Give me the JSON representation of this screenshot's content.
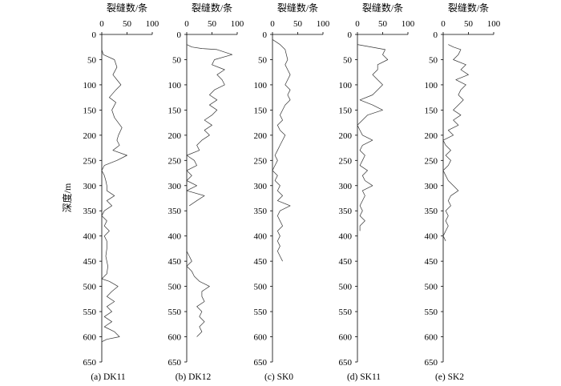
{
  "y_label": "深度/m",
  "chart_data": [
    {
      "type": "line",
      "caption": "(a) DK11",
      "xlabel": "裂缝数/条",
      "xlim": [
        0,
        100
      ],
      "x_ticks": [
        "0",
        "50",
        "100"
      ],
      "ylim": [
        0,
        650
      ],
      "y_inverted": true,
      "y_ticks": [
        "0",
        "50",
        "100",
        "150",
        "200",
        "250",
        "300",
        "350",
        "400",
        "450",
        "500",
        "550",
        "600",
        "650"
      ],
      "series": [
        {
          "points": [
            [
              0,
              30
            ],
            [
              3,
              40
            ],
            [
              25,
              50
            ],
            [
              30,
              65
            ],
            [
              22,
              80
            ],
            [
              30,
              90
            ],
            [
              38,
              100
            ],
            [
              28,
              110
            ],
            [
              15,
              125
            ],
            [
              28,
              135
            ],
            [
              20,
              150
            ],
            [
              25,
              165
            ],
            [
              40,
              185
            ],
            [
              33,
              200
            ],
            [
              30,
              210
            ],
            [
              35,
              220
            ],
            [
              22,
              230
            ],
            [
              50,
              240
            ],
            [
              30,
              250
            ],
            [
              5,
              260
            ],
            [
              0,
              270
            ],
            [
              5,
              280
            ],
            [
              8,
              290
            ],
            [
              10,
              300
            ],
            [
              10,
              310
            ],
            [
              25,
              320
            ],
            [
              10,
              330
            ],
            [
              20,
              340
            ],
            [
              5,
              350
            ],
            [
              0,
              360
            ],
            [
              10,
              370
            ],
            [
              5,
              380
            ],
            [
              15,
              390
            ],
            [
              5,
              400
            ],
            [
              10,
              410
            ],
            [
              10,
              425
            ],
            [
              8,
              440
            ],
            [
              12,
              460
            ],
            [
              10,
              475
            ],
            [
              0,
              485
            ],
            [
              15,
              490
            ],
            [
              32,
              500
            ],
            [
              20,
              510
            ],
            [
              10,
              520
            ],
            [
              25,
              530
            ],
            [
              10,
              540
            ],
            [
              20,
              550
            ],
            [
              5,
              560
            ],
            [
              20,
              570
            ],
            [
              5,
              580
            ],
            [
              25,
              590
            ],
            [
              35,
              600
            ],
            [
              10,
              605
            ],
            [
              0,
              610
            ]
          ]
        }
      ]
    },
    {
      "type": "line",
      "caption": "(b) DK12",
      "xlabel": "裂缝数/条",
      "xlim": [
        0,
        100
      ],
      "x_ticks": [
        "0",
        "50",
        "100"
      ],
      "ylim": [
        0,
        650
      ],
      "y_inverted": true,
      "y_ticks": [
        "0",
        "50",
        "100",
        "150",
        "200",
        "250",
        "300",
        "350",
        "400",
        "450",
        "500",
        "550",
        "600",
        "650"
      ],
      "series": [
        {
          "points": [
            [
              0,
              20
            ],
            [
              10,
              25
            ],
            [
              30,
              28
            ],
            [
              60,
              30
            ],
            [
              90,
              40
            ],
            [
              55,
              50
            ],
            [
              50,
              60
            ],
            [
              75,
              70
            ],
            [
              60,
              80
            ],
            [
              70,
              90
            ],
            [
              75,
              100
            ],
            [
              55,
              110
            ],
            [
              45,
              120
            ],
            [
              60,
              130
            ],
            [
              45,
              140
            ],
            [
              60,
              150
            ],
            [
              50,
              160
            ],
            [
              35,
              170
            ],
            [
              50,
              180
            ],
            [
              35,
              190
            ],
            [
              45,
              200
            ],
            [
              30,
              210
            ],
            [
              20,
              220
            ],
            [
              25,
              230
            ],
            [
              0,
              240
            ],
            [
              15,
              250
            ],
            [
              20,
              260
            ],
            [
              0,
              270
            ],
            [
              10,
              280
            ],
            [
              0,
              290
            ],
            [
              20,
              300
            ],
            [
              0,
              310
            ],
            [
              35,
              320
            ],
            [
              20,
              330
            ],
            [
              5,
              340
            ]
          ]
        },
        {
          "points": [
            [
              0,
              430
            ],
            [
              5,
              440
            ],
            [
              10,
              450
            ],
            [
              0,
              460
            ],
            [
              10,
              470
            ],
            [
              15,
              480
            ],
            [
              25,
              490
            ],
            [
              45,
              500
            ],
            [
              30,
              510
            ],
            [
              30,
              520
            ],
            [
              35,
              530
            ],
            [
              20,
              540
            ],
            [
              30,
              550
            ],
            [
              25,
              560
            ],
            [
              35,
              570
            ],
            [
              25,
              580
            ],
            [
              30,
              590
            ],
            [
              20,
              600
            ]
          ]
        }
      ]
    },
    {
      "type": "line",
      "caption": "(c) SK0",
      "xlabel": "裂缝数/条",
      "xlim": [
        0,
        100
      ],
      "x_ticks": [
        "0",
        "50",
        "100"
      ],
      "ylim": [
        0,
        650
      ],
      "y_inverted": true,
      "y_ticks": [
        "0",
        "50",
        "100",
        "150",
        "200",
        "250",
        "300",
        "350",
        "400",
        "450",
        "500",
        "550",
        "600",
        "650"
      ],
      "series": [
        {
          "points": [
            [
              0,
              10
            ],
            [
              15,
              20
            ],
            [
              25,
              30
            ],
            [
              30,
              50
            ],
            [
              25,
              60
            ],
            [
              30,
              70
            ],
            [
              35,
              80
            ],
            [
              30,
              90
            ],
            [
              25,
              100
            ],
            [
              35,
              110
            ],
            [
              30,
              120
            ],
            [
              35,
              130
            ],
            [
              25,
              140
            ],
            [
              20,
              150
            ],
            [
              15,
              160
            ],
            [
              20,
              170
            ],
            [
              10,
              180
            ],
            [
              15,
              190
            ],
            [
              25,
              200
            ],
            [
              20,
              210
            ],
            [
              15,
              220
            ],
            [
              10,
              230
            ],
            [
              5,
              240
            ],
            [
              10,
              250
            ],
            [
              5,
              260
            ],
            [
              0,
              270
            ],
            [
              10,
              280
            ],
            [
              5,
              290
            ],
            [
              15,
              300
            ],
            [
              10,
              310
            ],
            [
              20,
              320
            ],
            [
              10,
              330
            ],
            [
              35,
              340
            ],
            [
              15,
              350
            ],
            [
              10,
              360
            ],
            [
              15,
              370
            ],
            [
              20,
              380
            ],
            [
              10,
              390
            ],
            [
              15,
              400
            ],
            [
              10,
              410
            ],
            [
              15,
              420
            ],
            [
              10,
              430
            ],
            [
              15,
              440
            ],
            [
              20,
              450
            ]
          ]
        }
      ]
    },
    {
      "type": "line",
      "caption": "(d) SK11",
      "xlabel": "裂缝数/条",
      "xlim": [
        0,
        100
      ],
      "x_ticks": [
        "0",
        "50",
        "100"
      ],
      "ylim": [
        0,
        650
      ],
      "y_inverted": true,
      "y_ticks": [
        "0",
        "50",
        "100",
        "150",
        "200",
        "250",
        "300",
        "350",
        "400",
        "450",
        "500",
        "550",
        "600",
        "650"
      ],
      "series": [
        {
          "points": [
            [
              0,
              20
            ],
            [
              55,
              30
            ],
            [
              50,
              40
            ],
            [
              60,
              50
            ],
            [
              40,
              60
            ],
            [
              40,
              70
            ],
            [
              30,
              80
            ],
            [
              40,
              90
            ],
            [
              50,
              100
            ],
            [
              40,
              110
            ],
            [
              30,
              120
            ],
            [
              5,
              130
            ],
            [
              30,
              140
            ],
            [
              50,
              150
            ],
            [
              20,
              160
            ],
            [
              10,
              170
            ],
            [
              0,
              180
            ],
            [
              5,
              190
            ],
            [
              10,
              200
            ],
            [
              30,
              210
            ],
            [
              10,
              220
            ],
            [
              5,
              230
            ],
            [
              15,
              240
            ],
            [
              10,
              250
            ],
            [
              5,
              260
            ],
            [
              20,
              270
            ],
            [
              10,
              280
            ],
            [
              15,
              290
            ],
            [
              30,
              300
            ],
            [
              10,
              310
            ],
            [
              15,
              320
            ],
            [
              10,
              330
            ],
            [
              5,
              340
            ],
            [
              10,
              350
            ],
            [
              5,
              360
            ],
            [
              15,
              370
            ],
            [
              5,
              380
            ],
            [
              5,
              390
            ]
          ]
        }
      ]
    },
    {
      "type": "line",
      "caption": "(e) SK2",
      "xlabel": "裂缝数/条",
      "xlim": [
        0,
        100
      ],
      "x_ticks": [
        "0",
        "50",
        "100"
      ],
      "ylim": [
        0,
        650
      ],
      "y_inverted": true,
      "y_ticks": [
        "0",
        "50",
        "100",
        "150",
        "200",
        "250",
        "300",
        "350",
        "400",
        "450",
        "500",
        "550",
        "600",
        "650"
      ],
      "series": [
        {
          "points": [
            [
              10,
              20
            ],
            [
              20,
              25
            ],
            [
              35,
              30
            ],
            [
              30,
              40
            ],
            [
              20,
              50
            ],
            [
              45,
              60
            ],
            [
              35,
              70
            ],
            [
              50,
              80
            ],
            [
              25,
              90
            ],
            [
              45,
              100
            ],
            [
              35,
              110
            ],
            [
              30,
              120
            ],
            [
              40,
              130
            ],
            [
              30,
              140
            ],
            [
              20,
              150
            ],
            [
              35,
              160
            ],
            [
              20,
              170
            ],
            [
              30,
              180
            ],
            [
              10,
              190
            ],
            [
              20,
              200
            ],
            [
              0,
              210
            ],
            [
              5,
              220
            ],
            [
              15,
              230
            ],
            [
              5,
              240
            ],
            [
              15,
              250
            ],
            [
              10,
              260
            ],
            [
              0,
              270
            ],
            [
              5,
              280
            ],
            [
              10,
              290
            ],
            [
              20,
              300
            ],
            [
              30,
              310
            ],
            [
              15,
              320
            ],
            [
              10,
              330
            ],
            [
              15,
              340
            ],
            [
              5,
              350
            ],
            [
              10,
              360
            ],
            [
              5,
              370
            ],
            [
              10,
              380
            ],
            [
              5,
              390
            ],
            [
              0,
              400
            ],
            [
              5,
              410
            ]
          ]
        }
      ]
    }
  ]
}
